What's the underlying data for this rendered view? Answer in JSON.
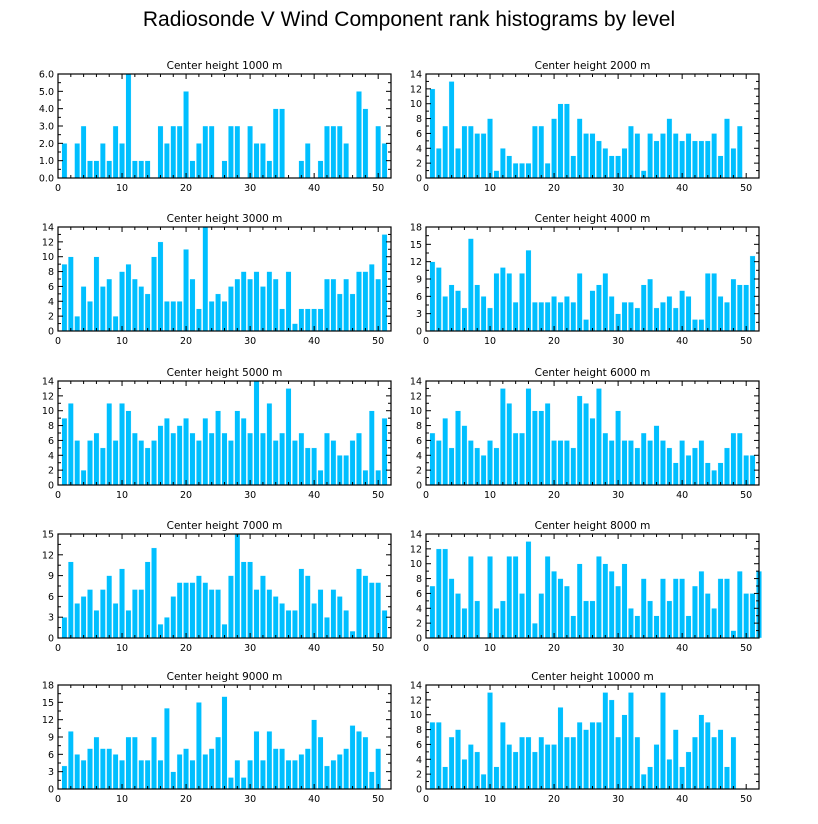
{
  "figure": {
    "title": "Radiosonde V Wind Component rank histograms by level",
    "bar_color": "#00bfff",
    "axis_color": "#000000"
  },
  "chart_data": [
    {
      "type": "bar",
      "title": "Center height 1000 m",
      "x_start": 1,
      "xlim": [
        0,
        52
      ],
      "ylim": [
        0,
        6
      ],
      "yticks": [
        0,
        1,
        2,
        3,
        4,
        5,
        6
      ],
      "ytick_labels": [
        "0.0",
        "1.0",
        "2.0",
        "3.0",
        "4.0",
        "5.0",
        "6.0"
      ],
      "xticks": [
        0,
        10,
        20,
        30,
        40,
        50
      ],
      "values": [
        2,
        0,
        2,
        3,
        1,
        1,
        2,
        1,
        3,
        2,
        6,
        1,
        1,
        1,
        0,
        3,
        2,
        3,
        3,
        5,
        1,
        2,
        3,
        3,
        0,
        1,
        3,
        3,
        0,
        3,
        2,
        2,
        1,
        4,
        4,
        0,
        0,
        1,
        2,
        0,
        1,
        3,
        3,
        3,
        2,
        0,
        5,
        4,
        0,
        3,
        2
      ]
    },
    {
      "type": "bar",
      "title": "Center height 2000 m",
      "x_start": 1,
      "xlim": [
        0,
        52
      ],
      "ylim": [
        0,
        14
      ],
      "yticks": [
        0,
        2,
        4,
        6,
        8,
        10,
        12,
        14
      ],
      "ytick_labels": [
        "0",
        "2",
        "4",
        "6",
        "8",
        "10",
        "12",
        "14"
      ],
      "xticks": [
        0,
        10,
        20,
        30,
        40,
        50
      ],
      "values": [
        12,
        4,
        7,
        13,
        4,
        7,
        7,
        6,
        6,
        8,
        1,
        4,
        3,
        2,
        2,
        2,
        7,
        7,
        2,
        8,
        10,
        10,
        3,
        8,
        6,
        6,
        5,
        4,
        3,
        3,
        4,
        7,
        6,
        1,
        6,
        5,
        6,
        8,
        6,
        5,
        6,
        5,
        5,
        5,
        6,
        3,
        8,
        4,
        7,
        0,
        0
      ]
    },
    {
      "type": "bar",
      "title": "Center height 3000 m",
      "x_start": 1,
      "xlim": [
        0,
        52
      ],
      "ylim": [
        0,
        14
      ],
      "yticks": [
        0,
        2,
        4,
        6,
        8,
        10,
        12,
        14
      ],
      "ytick_labels": [
        "0",
        "2",
        "4",
        "6",
        "8",
        "10",
        "12",
        "14"
      ],
      "xticks": [
        0,
        10,
        20,
        30,
        40,
        50
      ],
      "values": [
        9,
        10,
        2,
        6,
        4,
        10,
        6,
        7,
        2,
        8,
        9,
        7,
        6,
        5,
        10,
        12,
        4,
        4,
        4,
        11,
        7,
        3,
        14,
        4,
        5,
        4,
        6,
        7,
        8,
        7,
        8,
        6,
        8,
        7,
        3,
        8,
        1,
        3,
        3,
        3,
        3,
        7,
        7,
        5,
        7,
        5,
        8,
        8,
        9,
        7,
        13
      ]
    },
    {
      "type": "bar",
      "title": "Center height 4000 m",
      "x_start": 1,
      "xlim": [
        0,
        52
      ],
      "ylim": [
        0,
        18
      ],
      "yticks": [
        0,
        3,
        6,
        9,
        12,
        15,
        18
      ],
      "ytick_labels": [
        "0",
        "3",
        "6",
        "9",
        "12",
        "15",
        "18"
      ],
      "xticks": [
        0,
        10,
        20,
        30,
        40,
        50
      ],
      "values": [
        12,
        11,
        6,
        8,
        7,
        4,
        16,
        8,
        6,
        4,
        10,
        11,
        10,
        5,
        10,
        14,
        5,
        5,
        5,
        6,
        5,
        6,
        5,
        10,
        2,
        7,
        8,
        10,
        6,
        3,
        5,
        5,
        4,
        8,
        9,
        4,
        5,
        6,
        4,
        7,
        6,
        2,
        2,
        10,
        10,
        6,
        5,
        9,
        8,
        8,
        13
      ]
    },
    {
      "type": "bar",
      "title": "Center height 5000 m",
      "x_start": 1,
      "xlim": [
        0,
        52
      ],
      "ylim": [
        0,
        14
      ],
      "yticks": [
        0,
        2,
        4,
        6,
        8,
        10,
        12,
        14
      ],
      "ytick_labels": [
        "0",
        "2",
        "4",
        "6",
        "8",
        "10",
        "12",
        "14"
      ],
      "xticks": [
        0,
        10,
        20,
        30,
        40,
        50
      ],
      "values": [
        9,
        11,
        6,
        2,
        6,
        7,
        5,
        11,
        6,
        11,
        10,
        7,
        6,
        5,
        6,
        8,
        9,
        7,
        8,
        9,
        7,
        6,
        9,
        7,
        10,
        7,
        6,
        10,
        9,
        7,
        14,
        7,
        11,
        6,
        7,
        13,
        6,
        7,
        5,
        5,
        2,
        7,
        6,
        4,
        4,
        6,
        7,
        2,
        10,
        2,
        9
      ]
    },
    {
      "type": "bar",
      "title": "Center height 6000 m",
      "x_start": 1,
      "xlim": [
        0,
        52
      ],
      "ylim": [
        0,
        14
      ],
      "yticks": [
        0,
        2,
        4,
        6,
        8,
        10,
        12,
        14
      ],
      "ytick_labels": [
        "0",
        "2",
        "4",
        "6",
        "8",
        "10",
        "12",
        "14"
      ],
      "xticks": [
        0,
        10,
        20,
        30,
        40,
        50
      ],
      "values": [
        7,
        6,
        9,
        5,
        10,
        8,
        6,
        5,
        4,
        6,
        5,
        13,
        11,
        7,
        7,
        13,
        10,
        10,
        11,
        6,
        6,
        6,
        5,
        12,
        11,
        9,
        13,
        7,
        6,
        10,
        6,
        6,
        5,
        7,
        6,
        8,
        6,
        5,
        3,
        6,
        4,
        5,
        6,
        3,
        2,
        3,
        5,
        7,
        7,
        4,
        4
      ]
    },
    {
      "type": "bar",
      "title": "Center height 7000 m",
      "x_start": 1,
      "xlim": [
        0,
        52
      ],
      "ylim": [
        0,
        15
      ],
      "yticks": [
        0,
        3,
        6,
        9,
        12,
        15
      ],
      "ytick_labels": [
        "0",
        "3",
        "6",
        "9",
        "12",
        "15"
      ],
      "xticks": [
        0,
        10,
        20,
        30,
        40,
        50
      ],
      "values": [
        3,
        11,
        5,
        6,
        7,
        4,
        7,
        9,
        5,
        10,
        4,
        7,
        7,
        11,
        13,
        2,
        3,
        6,
        8,
        8,
        8,
        9,
        8,
        7,
        7,
        2,
        9,
        15,
        11,
        11,
        7,
        9,
        7,
        6,
        5,
        4,
        4,
        10,
        9,
        5,
        7,
        3,
        7,
        6,
        4,
        1,
        10,
        9,
        8,
        8,
        4
      ]
    },
    {
      "type": "bar",
      "title": "Center height 8000 m",
      "x_start": 1,
      "xlim": [
        0,
        52
      ],
      "ylim": [
        0,
        14
      ],
      "yticks": [
        0,
        2,
        4,
        6,
        8,
        10,
        12,
        14
      ],
      "ytick_labels": [
        "0",
        "2",
        "4",
        "6",
        "8",
        "10",
        "12",
        "14"
      ],
      "xticks": [
        0,
        10,
        20,
        30,
        40,
        50
      ],
      "values": [
        7,
        12,
        12,
        8,
        6,
        4,
        11,
        5,
        0,
        11,
        4,
        5,
        11,
        11,
        6,
        13,
        2,
        6,
        11,
        9,
        8,
        7,
        3,
        10,
        5,
        5,
        11,
        10,
        9,
        7,
        10,
        4,
        3,
        8,
        5,
        3,
        8,
        5,
        8,
        8,
        3,
        7,
        9,
        6,
        4,
        8,
        8,
        1,
        9,
        6,
        6,
        9
      ]
    },
    {
      "type": "bar",
      "title": "Center height 9000 m",
      "x_start": 1,
      "xlim": [
        0,
        52
      ],
      "ylim": [
        0,
        18
      ],
      "yticks": [
        0,
        3,
        6,
        9,
        12,
        15,
        18
      ],
      "ytick_labels": [
        "0",
        "3",
        "6",
        "9",
        "12",
        "15",
        "18"
      ],
      "xticks": [
        0,
        10,
        20,
        30,
        40,
        50
      ],
      "values": [
        4,
        10,
        6,
        5,
        7,
        9,
        7,
        7,
        6,
        5,
        9,
        9,
        5,
        5,
        9,
        5,
        14,
        3,
        6,
        7,
        5,
        15,
        6,
        7,
        9,
        16,
        2,
        5,
        2,
        5,
        10,
        5,
        10,
        7,
        7,
        5,
        5,
        6,
        7,
        12,
        9,
        4,
        5,
        6,
        7,
        11,
        10,
        9,
        3,
        7
      ]
    },
    {
      "type": "bar",
      "title": "Center height 10000 m",
      "x_start": 1,
      "xlim": [
        0,
        52
      ],
      "ylim": [
        0,
        14
      ],
      "yticks": [
        0,
        2,
        4,
        6,
        8,
        10,
        12,
        14
      ],
      "ytick_labels": [
        "0",
        "2",
        "4",
        "6",
        "8",
        "10",
        "12",
        "14"
      ],
      "xticks": [
        0,
        10,
        20,
        30,
        40,
        50
      ],
      "values": [
        9,
        9,
        3,
        7,
        8,
        4,
        6,
        5,
        2,
        13,
        3,
        9,
        6,
        5,
        7,
        7,
        5,
        7,
        6,
        6,
        11,
        7,
        7,
        9,
        8,
        9,
        9,
        13,
        12,
        7,
        10,
        13,
        7,
        2,
        3,
        6,
        13,
        4,
        8,
        3,
        5,
        7,
        10,
        9,
        7,
        8,
        3,
        7
      ]
    }
  ]
}
